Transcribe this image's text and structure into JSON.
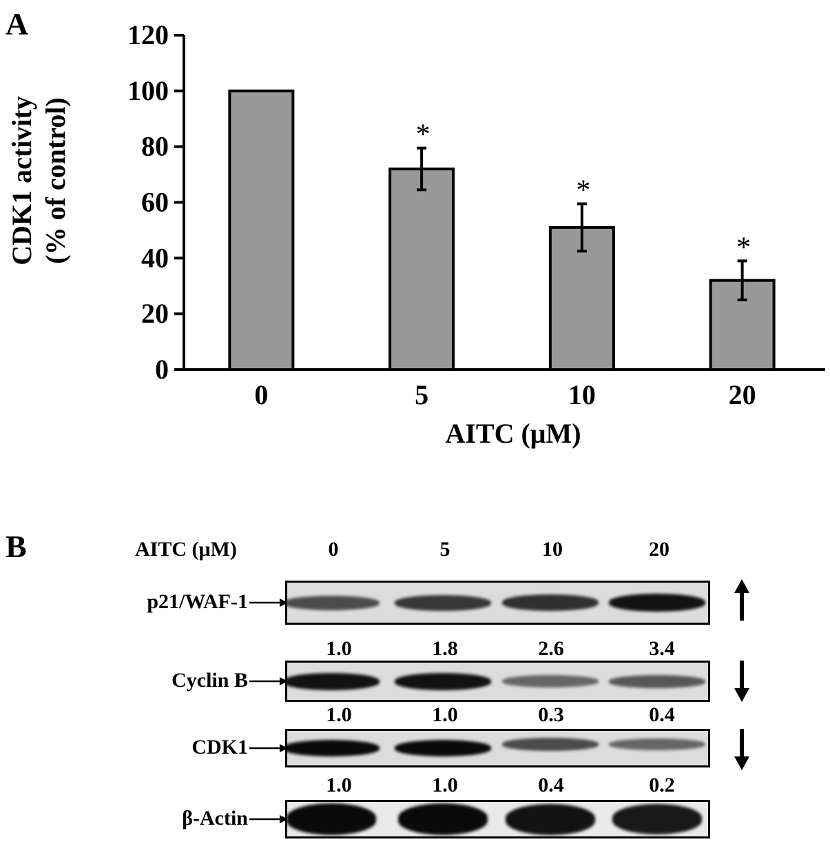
{
  "panel_a": {
    "letter": "A",
    "chart_data": {
      "type": "bar",
      "categories": [
        "0",
        "5",
        "10",
        "20"
      ],
      "values": [
        100,
        72,
        51,
        32
      ],
      "error": [
        0,
        7.5,
        8.5,
        7
      ],
      "significance": [
        "",
        "*",
        "*",
        "*"
      ],
      "title": "",
      "xlabel": "AITC (μM)",
      "ylabel_line1": "CDK1 activity",
      "ylabel_line2": "(% of control)",
      "ylim": [
        0,
        120
      ],
      "yticks": [
        "0",
        "20",
        "40",
        "60",
        "80",
        "100",
        "120"
      ],
      "grid": false,
      "bar_color": "#999999"
    }
  },
  "panel_b": {
    "letter": "B",
    "header_label": "AITC (μM)",
    "lanes": [
      "0",
      "5",
      "10",
      "20"
    ],
    "rows": [
      {
        "label": "p21/WAF-1",
        "quant": [
          "1.0",
          "1.8",
          "2.6",
          "3.4"
        ],
        "direction": "up-arrow-icon",
        "intensity": [
          0.55,
          0.7,
          0.75,
          0.95
        ]
      },
      {
        "label": "Cyclin B",
        "quant": [
          "1.0",
          "1.0",
          "0.3",
          "0.4"
        ],
        "direction": "down-arrow-icon",
        "intensity": [
          0.95,
          0.95,
          0.35,
          0.45
        ]
      },
      {
        "label": "CDK1",
        "quant": [
          "1.0",
          "1.0",
          "0.4",
          "0.2"
        ],
        "direction": "down-arrow-icon",
        "intensity": [
          1.0,
          1.0,
          0.55,
          0.35
        ]
      },
      {
        "label": "β-Actin",
        "quant": [],
        "direction": "",
        "intensity": [
          1.0,
          1.0,
          0.95,
          0.9
        ]
      }
    ]
  }
}
